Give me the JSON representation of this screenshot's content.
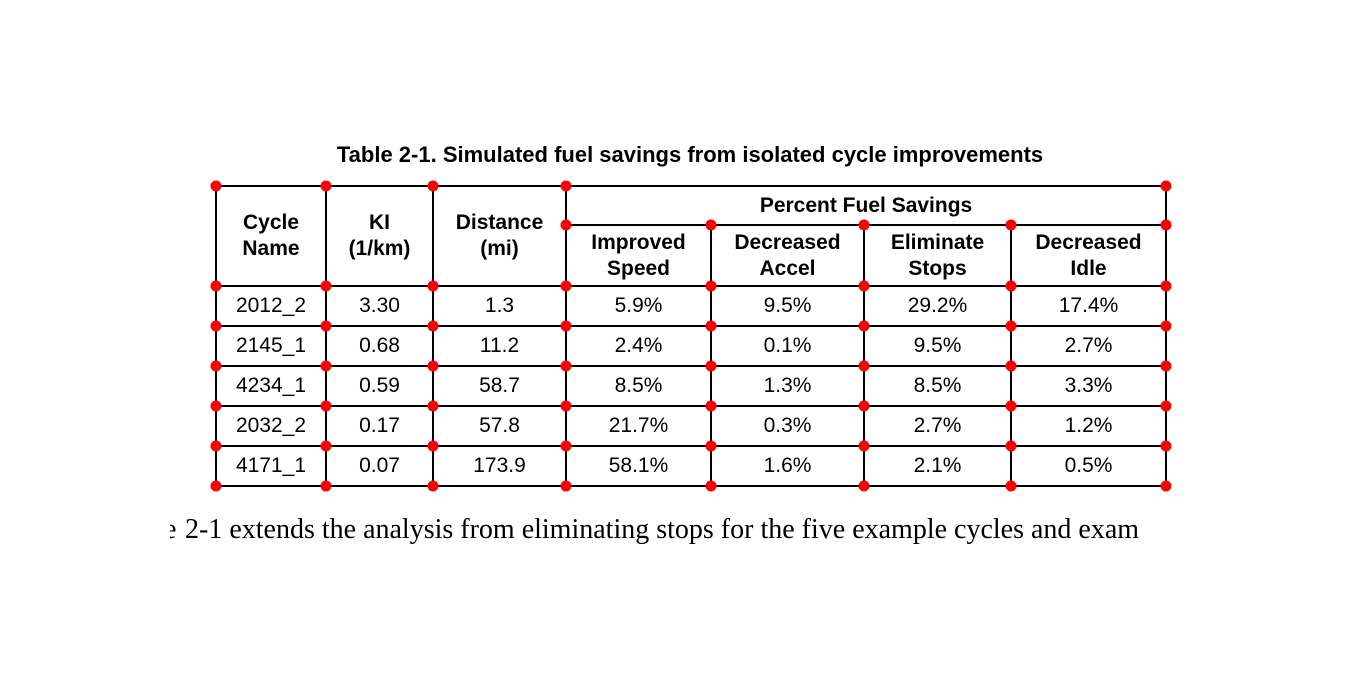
{
  "caption": "Table 2-1. Simulated fuel savings from isolated cycle improvements",
  "table": {
    "header": {
      "cycle_name": "Cycle\nName",
      "ki": "KI\n(1/km)",
      "distance": "Distance\n(mi)",
      "group": "Percent Fuel Savings",
      "sub": [
        "Improved\nSpeed",
        "Decreased\nAccel",
        "Eliminate\nStops",
        "Decreased\nIdle"
      ]
    },
    "rows": [
      [
        "2012_2",
        "3.30",
        "1.3",
        "5.9%",
        "9.5%",
        "29.2%",
        "17.4%"
      ],
      [
        "2145_1",
        "0.68",
        "11.2",
        "2.4%",
        "0.1%",
        "9.5%",
        "2.7%"
      ],
      [
        "4234_1",
        "0.59",
        "58.7",
        "8.5%",
        "1.3%",
        "8.5%",
        "3.3%"
      ],
      [
        "2032_2",
        "0.17",
        "57.8",
        "21.7%",
        "0.3%",
        "2.7%",
        "1.2%"
      ],
      [
        "4171_1",
        "0.07",
        "173.9",
        "58.1%",
        "1.6%",
        "2.1%",
        "0.5%"
      ]
    ]
  },
  "annotations": {
    "marker_color": "#ff0000"
  },
  "paragraph": {
    "leading_fragment": "e",
    "text": "2-1 extends the analysis from eliminating stops for the five example cycles and exam"
  }
}
